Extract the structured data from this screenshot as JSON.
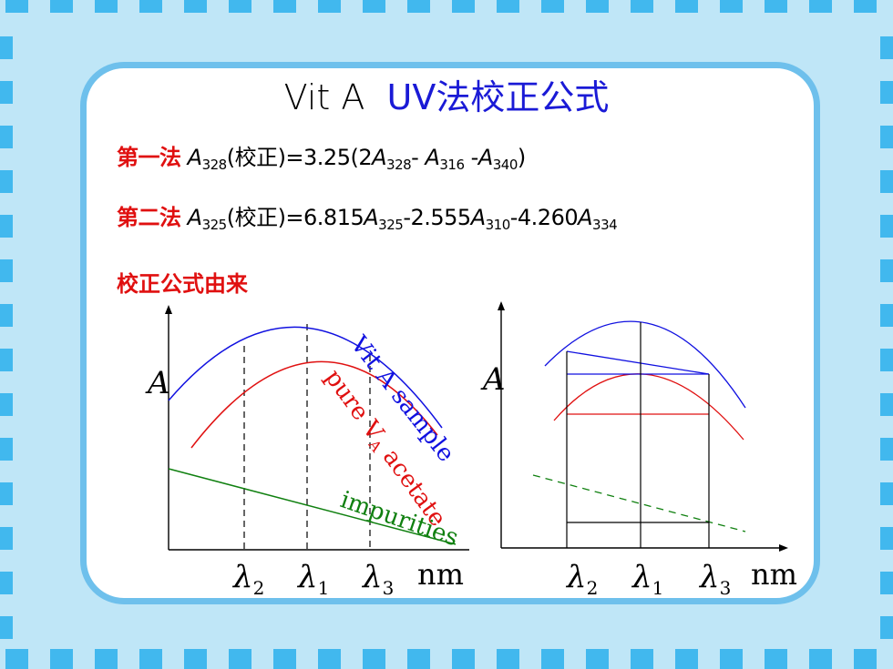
{
  "title": {
    "part_a": "Vit A",
    "part_b": "UV法校正公式"
  },
  "method1": {
    "label": "第一法",
    "t1": "A",
    "s1": "328",
    "t2": "(校正)=3.25(2",
    "t3": "A",
    "s3": "328",
    "t4": "- ",
    "t5": "A",
    "s5": "316",
    "t6": " -",
    "t7": "A",
    "s7": "340",
    "t8": ")"
  },
  "method2": {
    "label": "第二法",
    "t1": "A",
    "s1": "325",
    "t2": "(校正)=6.815",
    "t3": "A",
    "s3": "325",
    "t4": "-2.555",
    "t5": "A",
    "s5": "310",
    "t6": "-4.260",
    "t7": "A",
    "s7": "334"
  },
  "origin_label": "校正公式由来",
  "diagram": {
    "y_axis_label": "A",
    "x_unit": "nm",
    "lambda_symbol": "λ",
    "tick_subscripts": [
      "2",
      "1",
      "3"
    ],
    "curve_labels": {
      "vit_a_sample": "Vit A sample",
      "pure_prefix": "pure V",
      "pure_subscript": "A",
      "pure_suffix": " acetate",
      "impurities": "impurities"
    }
  },
  "colors": {
    "background": "#bfe6f7",
    "stripe": "#41b8ee",
    "card_border": "#6ec0ec",
    "title_accent": "#1a1ad6",
    "label_red": "#e01010",
    "curve_blue": "#1010e0",
    "curve_red": "#e01010",
    "curve_green": "#108010"
  }
}
